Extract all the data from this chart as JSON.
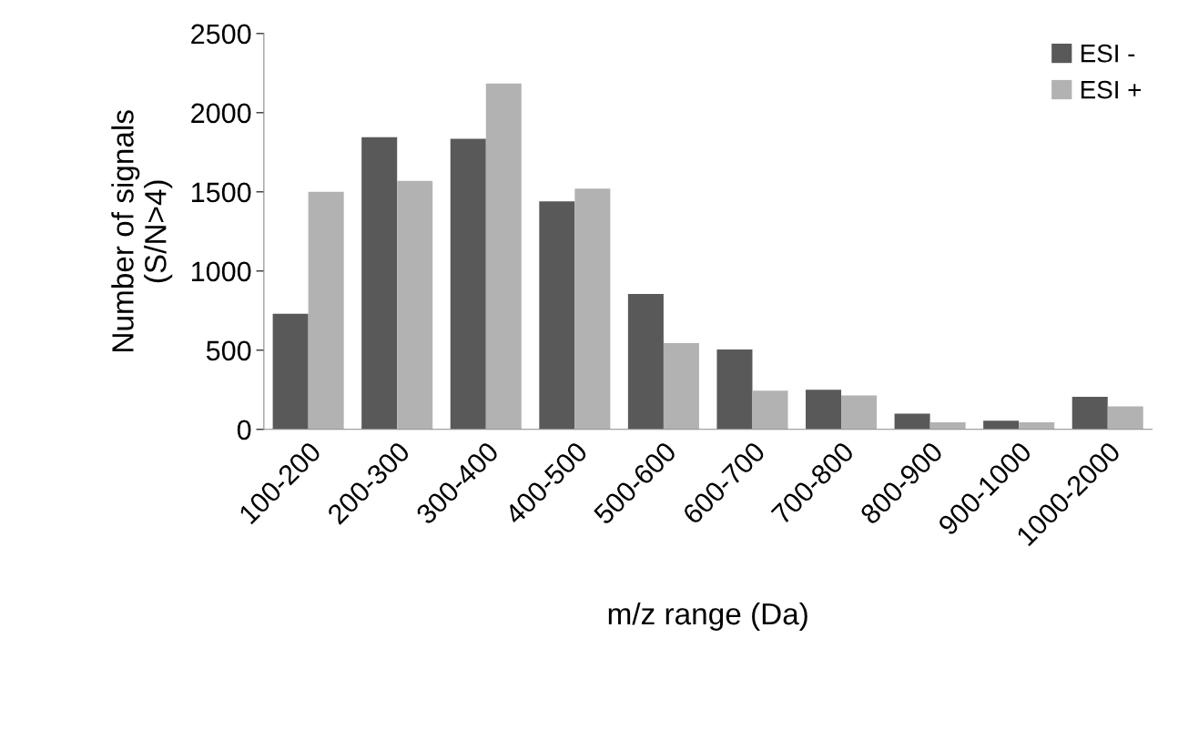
{
  "chart_data": {
    "type": "bar",
    "xlabel": "m/z range (Da)",
    "ylabel": "Number of signals\n(S/N>4)",
    "categories": [
      "100-200",
      "200-300",
      "300-400",
      "400-500",
      "500-600",
      "600-700",
      "700-800",
      "800-900",
      "900-1000",
      "1000-2000"
    ],
    "series": [
      {
        "name": "ESI -",
        "color": "#595959",
        "values": [
          730,
          1845,
          1835,
          1440,
          855,
          505,
          250,
          100,
          55,
          205
        ]
      },
      {
        "name": "ESI +",
        "color": "#b2b2b2",
        "values": [
          1500,
          1570,
          2185,
          1520,
          545,
          245,
          215,
          45,
          45,
          145
        ]
      }
    ],
    "ylim": [
      0,
      2500
    ],
    "yticks": [
      0,
      500,
      1000,
      1500,
      2000,
      2500
    ],
    "grid": false,
    "legend": "top right"
  }
}
